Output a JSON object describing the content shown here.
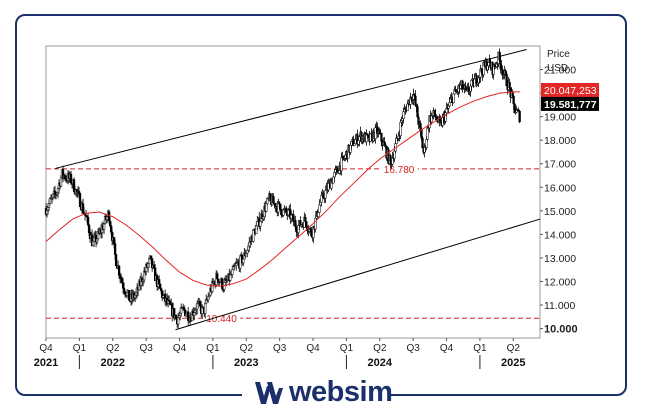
{
  "colors": {
    "brand": "#1b2f6b",
    "ma": "#e32626",
    "price": "#000000",
    "support": "#d62020"
  },
  "logo": {
    "text": "websim",
    "mark": "websim-logo-mark"
  },
  "chart_data": {
    "type": "candlestick",
    "title": "",
    "ylabel": "Price\nUSD",
    "y_axis_label_line1": "Price",
    "y_axis_label_line2": "USD",
    "ylim": [
      9.6,
      22.0
    ],
    "xlim": [
      2021.75,
      2025.45
    ],
    "y_ticks": [
      "10.000",
      "11.000",
      "12.000",
      "13.000",
      "14.000",
      "15.000",
      "16.000",
      "17.000",
      "18.000",
      "19.000",
      "20.000",
      "21.000"
    ],
    "x_quarter_ticks": [
      {
        "x": 2021.75,
        "label": "Q4"
      },
      {
        "x": 2022.0,
        "label": "Q1"
      },
      {
        "x": 2022.25,
        "label": "Q2"
      },
      {
        "x": 2022.5,
        "label": "Q3"
      },
      {
        "x": 2022.75,
        "label": "Q4"
      },
      {
        "x": 2023.0,
        "label": "Q1"
      },
      {
        "x": 2023.25,
        "label": "Q2"
      },
      {
        "x": 2023.5,
        "label": "Q3"
      },
      {
        "x": 2023.75,
        "label": "Q4"
      },
      {
        "x": 2024.0,
        "label": "Q1"
      },
      {
        "x": 2024.25,
        "label": "Q2"
      },
      {
        "x": 2024.5,
        "label": "Q3"
      },
      {
        "x": 2024.75,
        "label": "Q4"
      },
      {
        "x": 2025.0,
        "label": "Q1"
      },
      {
        "x": 2025.25,
        "label": "Q2"
      }
    ],
    "x_year_labels": [
      {
        "x": 2021.75,
        "label": "2021"
      },
      {
        "x": 2022.25,
        "label": "2022"
      },
      {
        "x": 2023.25,
        "label": "2023"
      },
      {
        "x": 2024.25,
        "label": "2024"
      },
      {
        "x": 2025.25,
        "label": "2025"
      }
    ],
    "year_separators": [
      2022.0,
      2023.0,
      2024.0,
      2025.0
    ],
    "last_price": {
      "value": 19.581777,
      "label": "19.581,777"
    },
    "ma_last": {
      "value": 20.047253,
      "label": "20.047,253"
    },
    "support_levels": [
      {
        "value": 16.78,
        "label": "16.780",
        "label_x": 2024.28
      },
      {
        "value": 10.44,
        "label": "10.440",
        "label_x": 2022.95
      }
    ],
    "channel_upper": {
      "x1": 2021.82,
      "y1": 16.8,
      "x2": 2025.35,
      "y2": 21.85
    },
    "channel_lower": {
      "x1": 2022.72,
      "y1": 9.95,
      "x2": 2025.45,
      "y2": 14.65
    },
    "price_anchors": [
      [
        2021.75,
        15.1
      ],
      [
        2021.83,
        15.8
      ],
      [
        2021.87,
        16.55
      ],
      [
        2021.94,
        16.3
      ],
      [
        2022.0,
        15.5
      ],
      [
        2022.05,
        14.7
      ],
      [
        2022.1,
        13.6
      ],
      [
        2022.15,
        14.0
      ],
      [
        2022.22,
        14.9
      ],
      [
        2022.27,
        13.0
      ],
      [
        2022.33,
        11.8
      ],
      [
        2022.38,
        11.2
      ],
      [
        2022.43,
        11.5
      ],
      [
        2022.48,
        12.3
      ],
      [
        2022.53,
        12.9
      ],
      [
        2022.58,
        12.0
      ],
      [
        2022.63,
        11.3
      ],
      [
        2022.68,
        10.9
      ],
      [
        2022.73,
        10.4
      ],
      [
        2022.78,
        10.8
      ],
      [
        2022.83,
        10.5
      ],
      [
        2022.88,
        11.0
      ],
      [
        2022.93,
        10.7
      ],
      [
        2022.98,
        11.6
      ],
      [
        2023.03,
        12.2
      ],
      [
        2023.08,
        11.8
      ],
      [
        2023.13,
        12.2
      ],
      [
        2023.18,
        12.7
      ],
      [
        2023.23,
        13.0
      ],
      [
        2023.3,
        14.0
      ],
      [
        2023.35,
        14.6
      ],
      [
        2023.42,
        15.5
      ],
      [
        2023.46,
        15.3
      ],
      [
        2023.52,
        15.0
      ],
      [
        2023.58,
        14.8
      ],
      [
        2023.63,
        14.3
      ],
      [
        2023.69,
        14.6
      ],
      [
        2023.74,
        14.0
      ],
      [
        2023.8,
        15.3
      ],
      [
        2023.86,
        16.0
      ],
      [
        2023.92,
        16.6
      ],
      [
        2024.0,
        17.4
      ],
      [
        2024.05,
        17.9
      ],
      [
        2024.11,
        18.2
      ],
      [
        2024.17,
        18.0
      ],
      [
        2024.23,
        18.4
      ],
      [
        2024.28,
        17.8
      ],
      [
        2024.33,
        17.0
      ],
      [
        2024.38,
        18.0
      ],
      [
        2024.42,
        19.0
      ],
      [
        2024.47,
        19.7
      ],
      [
        2024.5,
        20.0
      ],
      [
        2024.54,
        18.8
      ],
      [
        2024.58,
        17.4
      ],
      [
        2024.62,
        18.9
      ],
      [
        2024.66,
        19.1
      ],
      [
        2024.7,
        18.6
      ],
      [
        2024.75,
        19.2
      ],
      [
        2024.8,
        19.9
      ],
      [
        2024.86,
        20.3
      ],
      [
        2024.9,
        20.0
      ],
      [
        2024.96,
        20.5
      ],
      [
        2025.02,
        21.0
      ],
      [
        2025.06,
        21.3
      ],
      [
        2025.1,
        21.0
      ],
      [
        2025.14,
        21.5
      ],
      [
        2025.18,
        20.8
      ],
      [
        2025.22,
        20.2
      ],
      [
        2025.26,
        19.3
      ],
      [
        2025.3,
        19.0
      ]
    ],
    "moving_average": [
      [
        2021.75,
        13.7
      ],
      [
        2021.85,
        14.2
      ],
      [
        2021.95,
        14.65
      ],
      [
        2022.05,
        14.9
      ],
      [
        2022.15,
        14.95
      ],
      [
        2022.25,
        14.75
      ],
      [
        2022.35,
        14.4
      ],
      [
        2022.45,
        13.95
      ],
      [
        2022.55,
        13.45
      ],
      [
        2022.65,
        12.9
      ],
      [
        2022.75,
        12.4
      ],
      [
        2022.85,
        12.05
      ],
      [
        2022.95,
        11.85
      ],
      [
        2023.05,
        11.8
      ],
      [
        2023.15,
        11.9
      ],
      [
        2023.25,
        12.1
      ],
      [
        2023.35,
        12.5
      ],
      [
        2023.45,
        12.95
      ],
      [
        2023.55,
        13.45
      ],
      [
        2023.65,
        13.95
      ],
      [
        2023.75,
        14.45
      ],
      [
        2023.85,
        15.0
      ],
      [
        2023.95,
        15.6
      ],
      [
        2024.05,
        16.15
      ],
      [
        2024.15,
        16.7
      ],
      [
        2024.25,
        17.2
      ],
      [
        2024.35,
        17.6
      ],
      [
        2024.45,
        18.0
      ],
      [
        2024.55,
        18.4
      ],
      [
        2024.65,
        18.75
      ],
      [
        2024.75,
        19.1
      ],
      [
        2024.85,
        19.4
      ],
      [
        2024.95,
        19.65
      ],
      [
        2025.05,
        19.85
      ],
      [
        2025.15,
        20.0
      ],
      [
        2025.25,
        20.05
      ],
      [
        2025.3,
        20.05
      ]
    ]
  }
}
